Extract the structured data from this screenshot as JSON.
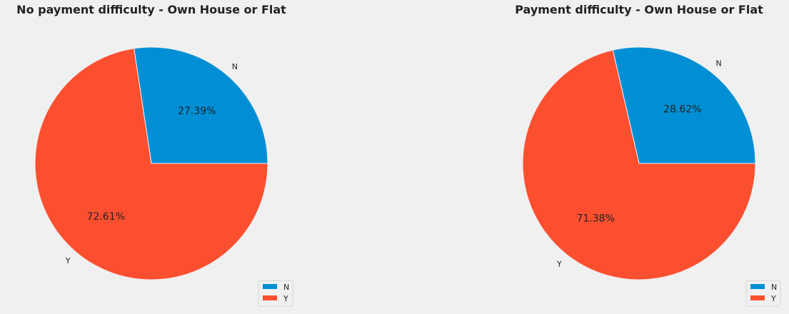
{
  "chart_data": [
    {
      "type": "pie",
      "title": "No payment difficulty - Own House or Flat",
      "categories": [
        "N",
        "Y"
      ],
      "values": [
        27.39,
        72.61
      ],
      "value_labels": [
        "27.39%",
        "72.61%"
      ],
      "colors": [
        "#008fd5",
        "#fc4f30"
      ],
      "start_angle_deg": 0,
      "direction": "counterclockwise",
      "legend": {
        "entries": [
          "N",
          "Y"
        ],
        "placement": "lower-right"
      }
    },
    {
      "type": "pie",
      "title": "Payment difficulty - Own House or Flat",
      "categories": [
        "N",
        "Y"
      ],
      "values": [
        28.62,
        71.38
      ],
      "value_labels": [
        "28.62%",
        "71.38%"
      ],
      "colors": [
        "#008fd5",
        "#fc4f30"
      ],
      "start_angle_deg": 0,
      "direction": "counterclockwise",
      "legend": {
        "entries": [
          "N",
          "Y"
        ],
        "placement": "lower-right"
      }
    }
  ]
}
